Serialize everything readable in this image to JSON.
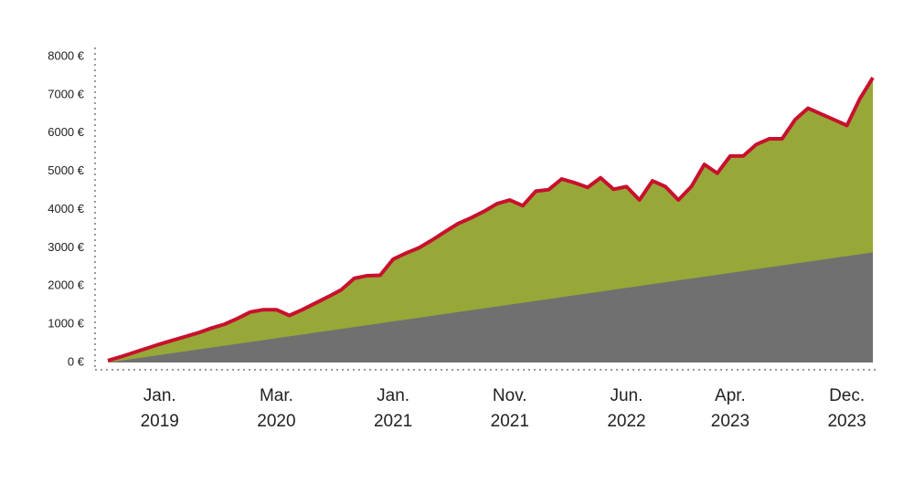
{
  "chart_data": {
    "type": "area",
    "categories": [
      null,
      null,
      null,
      null,
      "Jan. 2019",
      null,
      null,
      null,
      null,
      null,
      null,
      null,
      null,
      "Mar. 2020",
      null,
      null,
      null,
      null,
      null,
      null,
      null,
      null,
      "Jan. 2021",
      null,
      null,
      null,
      null,
      null,
      null,
      null,
      null,
      "Nov. 2021",
      null,
      null,
      null,
      null,
      null,
      null,
      null,
      null,
      "Jun. 2022",
      null,
      null,
      null,
      null,
      null,
      null,
      null,
      "Apr. 2023",
      null,
      null,
      null,
      null,
      null,
      null,
      null,
      null,
      "Dec. 2023",
      null,
      null
    ],
    "series": [
      {
        "color": "#97a838",
        "line_color": "#c8102e",
        "values": [
          50,
          150,
          260,
          370,
          480,
          580,
          680,
          780,
          900,
          1000,
          1150,
          1320,
          1380,
          1380,
          1230,
          1380,
          1550,
          1720,
          1900,
          2200,
          2270,
          2280,
          2700,
          2860,
          3000,
          3200,
          3420,
          3630,
          3780,
          3950,
          4150,
          4250,
          4100,
          4480,
          4520,
          4800,
          4700,
          4580,
          4830,
          4530,
          4600,
          4250,
          4750,
          4600,
          4250,
          4600,
          5180,
          4950,
          5400,
          5400,
          5700,
          5850,
          5850,
          6350,
          6650,
          6500,
          6350,
          6200,
          6900,
          7450
        ]
      },
      {
        "color": "#707070",
        "values": [
          0,
          49,
          98,
          146,
          195,
          244,
          293,
          342,
          390,
          439,
          488,
          537,
          586,
          635,
          683,
          732,
          781,
          830,
          879,
          927,
          976,
          1025,
          1074,
          1123,
          1171,
          1220,
          1269,
          1318,
          1367,
          1416,
          1464,
          1513,
          1562,
          1611,
          1660,
          1708,
          1757,
          1806,
          1855,
          1904,
          1952,
          2001,
          2050,
          2099,
          2148,
          2197,
          2245,
          2294,
          2343,
          2392,
          2441,
          2489,
          2538,
          2587,
          2636,
          2685,
          2733,
          2782,
          2831,
          2880
        ]
      }
    ],
    "ylim": [
      0,
      8000
    ],
    "yticks": [
      {
        "value": 0,
        "label": "0 €"
      },
      {
        "value": 1000,
        "label": "1000 €"
      },
      {
        "value": 2000,
        "label": "2000 €"
      },
      {
        "value": 3000,
        "label": "3000 €"
      },
      {
        "value": 4000,
        "label": "4000 €"
      },
      {
        "value": 5000,
        "label": "5000 €"
      },
      {
        "value": 6000,
        "label": "6000 €"
      },
      {
        "value": 7000,
        "label": "7000 €"
      },
      {
        "value": 8000,
        "label": "8000 €"
      }
    ]
  }
}
